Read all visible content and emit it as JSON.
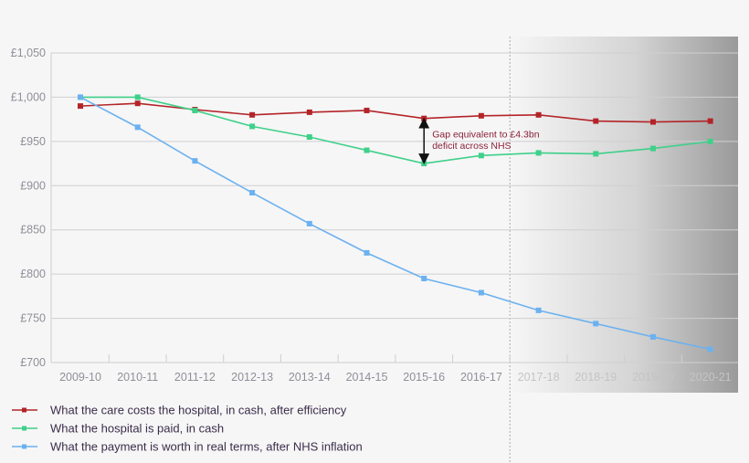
{
  "chart_data": {
    "type": "line",
    "categories": [
      "2009-10",
      "2010-11",
      "2011-12",
      "2012-13",
      "2013-14",
      "2014-15",
      "2015-16",
      "2016-17",
      "2017-18",
      "2018-19",
      "2019-20",
      "2020-21"
    ],
    "projection_from": "2017-18",
    "ylim": [
      700,
      1050
    ],
    "yticks": [
      700,
      750,
      800,
      850,
      900,
      950,
      1000,
      1050
    ],
    "ytick_labels": [
      "£700",
      "£750",
      "£800",
      "£850",
      "£900",
      "£950",
      "£1,000",
      "£1,050"
    ],
    "grid": true,
    "legend_placement": "bottom-left",
    "series": [
      {
        "name": "What the care costs the hospital, in cash, after efficiency",
        "color": "#b32428",
        "values": [
          990,
          993,
          986,
          980,
          983,
          985,
          976,
          979,
          980,
          973,
          972,
          973
        ]
      },
      {
        "name": "What the hospital is paid, in cash",
        "color": "#3fd08a",
        "values": [
          1000,
          1000,
          985,
          967,
          955,
          940,
          925,
          934,
          937,
          936,
          942,
          950
        ]
      },
      {
        "name": "What the payment is worth in real terms, after NHS inflation",
        "color": "#6cb1f0",
        "values": [
          1000,
          966,
          928,
          892,
          857,
          824,
          795,
          779,
          759,
          744,
          729,
          715
        ]
      }
    ],
    "annotations": [
      {
        "category": "2015-16",
        "from": 976,
        "to": 925,
        "text_lines": [
          "Gap equivalent to £4.3bn",
          "deficit across NHS"
        ]
      }
    ]
  }
}
